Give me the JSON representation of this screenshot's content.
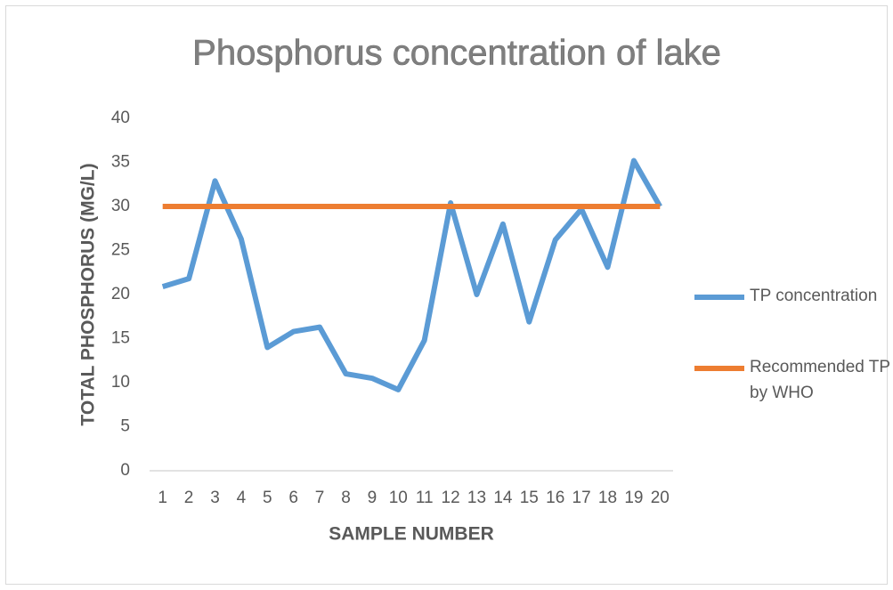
{
  "chart_data": {
    "type": "line",
    "title": "Phosphorus concentration of lake",
    "x_label": "SAMPLE NUMBER",
    "y_label": "TOTAL PHOSPHORUS (MG/L)",
    "categories": [
      "1",
      "2",
      "3",
      "4",
      "5",
      "6",
      "7",
      "8",
      "9",
      "10",
      "11",
      "12",
      "13",
      "14",
      "15",
      "16",
      "17",
      "18",
      "19",
      "20"
    ],
    "series": [
      {
        "name": "TP concentration",
        "color": "#5b9bd5",
        "values": [
          20.9,
          21.8,
          32.9,
          26.3,
          14.0,
          15.8,
          16.3,
          11.0,
          10.5,
          9.2,
          14.8,
          30.4,
          20.0,
          28.0,
          16.9,
          26.2,
          29.7,
          23.1,
          35.2,
          30.0
        ]
      },
      {
        "name": "Recommended TP by WHO",
        "color": "#ed7d31",
        "values": [
          30,
          30,
          30,
          30,
          30,
          30,
          30,
          30,
          30,
          30,
          30,
          30,
          30,
          30,
          30,
          30,
          30,
          30,
          30,
          30
        ]
      }
    ],
    "ylim": [
      0,
      40
    ],
    "yticks": [
      0,
      5,
      10,
      15,
      20,
      25,
      30,
      35,
      40
    ],
    "grid": false,
    "legend": "right"
  }
}
